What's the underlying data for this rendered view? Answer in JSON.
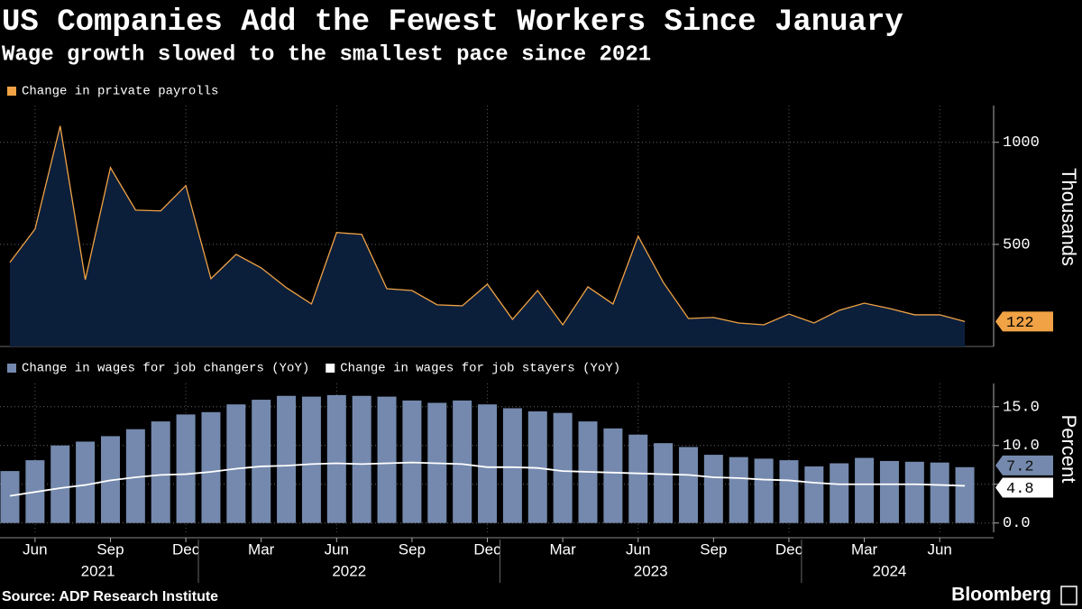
{
  "chart_data": [
    {
      "type": "area",
      "title": "US Companies Add the Fewest Workers Since January",
      "subtitle": "Wage growth slowed to the smallest pace since 2021",
      "x": [
        "2021-05",
        "2021-06",
        "2021-07",
        "2021-08",
        "2021-09",
        "2021-10",
        "2021-11",
        "2021-12",
        "2022-01",
        "2022-02",
        "2022-03",
        "2022-04",
        "2022-05",
        "2022-06",
        "2022-07",
        "2022-08",
        "2022-09",
        "2022-10",
        "2022-11",
        "2022-12",
        "2023-01",
        "2023-02",
        "2023-03",
        "2023-04",
        "2023-05",
        "2023-06",
        "2023-07",
        "2023-08",
        "2023-09",
        "2023-10",
        "2023-11",
        "2023-12",
        "2024-01",
        "2024-02",
        "2024-03",
        "2024-04",
        "2024-05",
        "2024-06",
        "2024-07"
      ],
      "series": [
        {
          "name": "Change in private payrolls",
          "color": "#f0a245",
          "fill": "#0b1f3b",
          "values": [
            412,
            575,
            1080,
            327,
            876,
            668,
            664,
            788,
            332,
            451,
            385,
            288,
            208,
            558,
            549,
            283,
            274,
            204,
            199,
            305,
            133,
            274,
            106,
            292,
            208,
            540,
            314,
            137,
            142,
            115,
            106,
            159,
            115,
            177,
            212,
            186,
            155,
            155,
            122
          ]
        }
      ],
      "ylabel": "Thousands",
      "ylim": [
        0,
        1180
      ],
      "yticks": [
        500,
        1000
      ],
      "grid": true
    },
    {
      "type": "bar-line",
      "x": [
        "2021-05",
        "2021-06",
        "2021-07",
        "2021-08",
        "2021-09",
        "2021-10",
        "2021-11",
        "2021-12",
        "2022-01",
        "2022-02",
        "2022-03",
        "2022-04",
        "2022-05",
        "2022-06",
        "2022-07",
        "2022-08",
        "2022-09",
        "2022-10",
        "2022-11",
        "2022-12",
        "2023-01",
        "2023-02",
        "2023-03",
        "2023-04",
        "2023-05",
        "2023-06",
        "2023-07",
        "2023-08",
        "2023-09",
        "2023-10",
        "2023-11",
        "2023-12",
        "2024-01",
        "2024-02",
        "2024-03",
        "2024-04",
        "2024-05",
        "2024-06",
        "2024-07"
      ],
      "series": [
        {
          "name": "Change in wages for job changers (YoY)",
          "type": "bar",
          "color": "#7489ad",
          "values": [
            6.7,
            8.1,
            10.0,
            10.5,
            11.2,
            12.1,
            13.1,
            14.0,
            14.3,
            15.3,
            15.9,
            16.4,
            16.3,
            16.5,
            16.4,
            16.3,
            15.8,
            15.5,
            15.8,
            15.3,
            14.8,
            14.4,
            14.2,
            13.1,
            12.2,
            11.4,
            10.3,
            9.8,
            8.8,
            8.5,
            8.3,
            8.1,
            7.3,
            7.7,
            8.4,
            8.0,
            7.9,
            7.8,
            7.2
          ]
        },
        {
          "name": "Change in wages for job stayers (YoY)",
          "type": "line",
          "color": "#ffffff",
          "values": [
            3.5,
            4.0,
            4.5,
            4.9,
            5.5,
            5.9,
            6.2,
            6.3,
            6.6,
            7.0,
            7.3,
            7.4,
            7.6,
            7.7,
            7.6,
            7.7,
            7.8,
            7.7,
            7.6,
            7.2,
            7.2,
            7.1,
            6.7,
            6.6,
            6.5,
            6.4,
            6.3,
            6.2,
            5.9,
            5.8,
            5.6,
            5.5,
            5.2,
            5.0,
            5.0,
            5.0,
            5.0,
            4.9,
            4.8
          ]
        }
      ],
      "ylabel": "Percent",
      "ylim": [
        -1.2,
        18
      ],
      "yticks": [
        {
          "value": 0,
          "label": "0.0"
        },
        {
          "value": 5,
          "label": "5.0"
        },
        {
          "value": 10,
          "label": "10.0"
        },
        {
          "value": 15,
          "label": "15.0"
        }
      ],
      "xticks": [
        {
          "value": "2021-06",
          "label": "Jun"
        },
        {
          "value": "2021-09",
          "label": "Sep"
        },
        {
          "value": "2021-12",
          "label": "Dec"
        },
        {
          "value": "2022-03",
          "label": "Mar"
        },
        {
          "value": "2022-06",
          "label": "Jun"
        },
        {
          "value": "2022-09",
          "label": "Sep"
        },
        {
          "value": "2022-12",
          "label": "Dec"
        },
        {
          "value": "2023-03",
          "label": "Mar"
        },
        {
          "value": "2023-06",
          "label": "Jun"
        },
        {
          "value": "2023-09",
          "label": "Sep"
        },
        {
          "value": "2023-12",
          "label": "Dec"
        },
        {
          "value": "2024-03",
          "label": "Mar"
        },
        {
          "value": "2024-06",
          "label": "Jun"
        }
      ],
      "xyears": [
        2021,
        2022,
        2023,
        2024
      ],
      "grid": true
    }
  ],
  "source": "Source: ADP Research Institute",
  "brand": "Bloomberg"
}
